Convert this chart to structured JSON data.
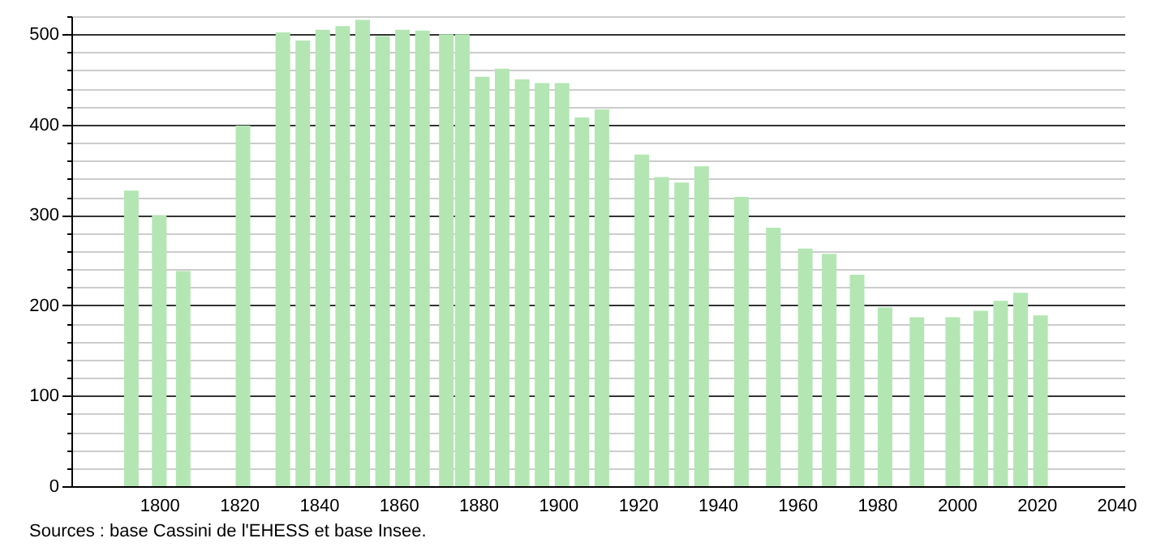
{
  "chart_data": {
    "type": "bar",
    "x": [
      1793,
      1800,
      1806,
      1821,
      1831,
      1836,
      1841,
      1846,
      1851,
      1856,
      1861,
      1866,
      1872,
      1876,
      1881,
      1886,
      1891,
      1896,
      1901,
      1906,
      1911,
      1921,
      1926,
      1931,
      1936,
      1946,
      1954,
      1962,
      1968,
      1975,
      1982,
      1990,
      1999,
      2006,
      2011,
      2016,
      2021
    ],
    "values": [
      327,
      300,
      238,
      399,
      502,
      493,
      505,
      509,
      516,
      498,
      505,
      504,
      500,
      500,
      453,
      462,
      450,
      446,
      446,
      408,
      417,
      367,
      342,
      336,
      354,
      320,
      286,
      263,
      257,
      234,
      198,
      187,
      187,
      194,
      205,
      214,
      189
    ],
    "color": "#b3e6b3",
    "xlim": [
      1780,
      2040
    ],
    "xticks": [
      1800,
      1820,
      1840,
      1860,
      1880,
      1900,
      1920,
      1940,
      1960,
      1980,
      2000,
      2020,
      2040
    ],
    "ylim": [
      0,
      520
    ],
    "yticks": [
      0,
      {
        "value": 20,
        "label": null
      },
      {
        "value": 40,
        "label": null
      },
      {
        "value": 60,
        "label": null
      },
      {
        "value": 80,
        "label": null
      },
      100,
      {
        "value": 120,
        "label": null
      },
      {
        "value": 140,
        "label": null
      },
      {
        "value": 160,
        "label": null
      },
      {
        "value": 180,
        "label": null
      },
      200,
      {
        "value": 220,
        "label": null
      },
      {
        "value": 240,
        "label": null
      },
      {
        "value": 260,
        "label": null
      },
      {
        "value": 280,
        "label": null
      },
      300,
      {
        "value": 320,
        "label": null
      },
      {
        "value": 340,
        "label": null
      },
      {
        "value": 360,
        "label": null
      },
      {
        "value": 380,
        "label": null
      },
      400,
      {
        "value": 420,
        "label": null
      },
      {
        "value": 440,
        "label": null
      },
      {
        "value": 460,
        "label": null
      },
      {
        "value": 480,
        "label": null
      },
      500,
      {
        "value": 520,
        "label": null
      }
    ],
    "grid": "y",
    "annotations": [
      "Sources : base Cassini de l'EHESS et base Insee."
    ]
  }
}
